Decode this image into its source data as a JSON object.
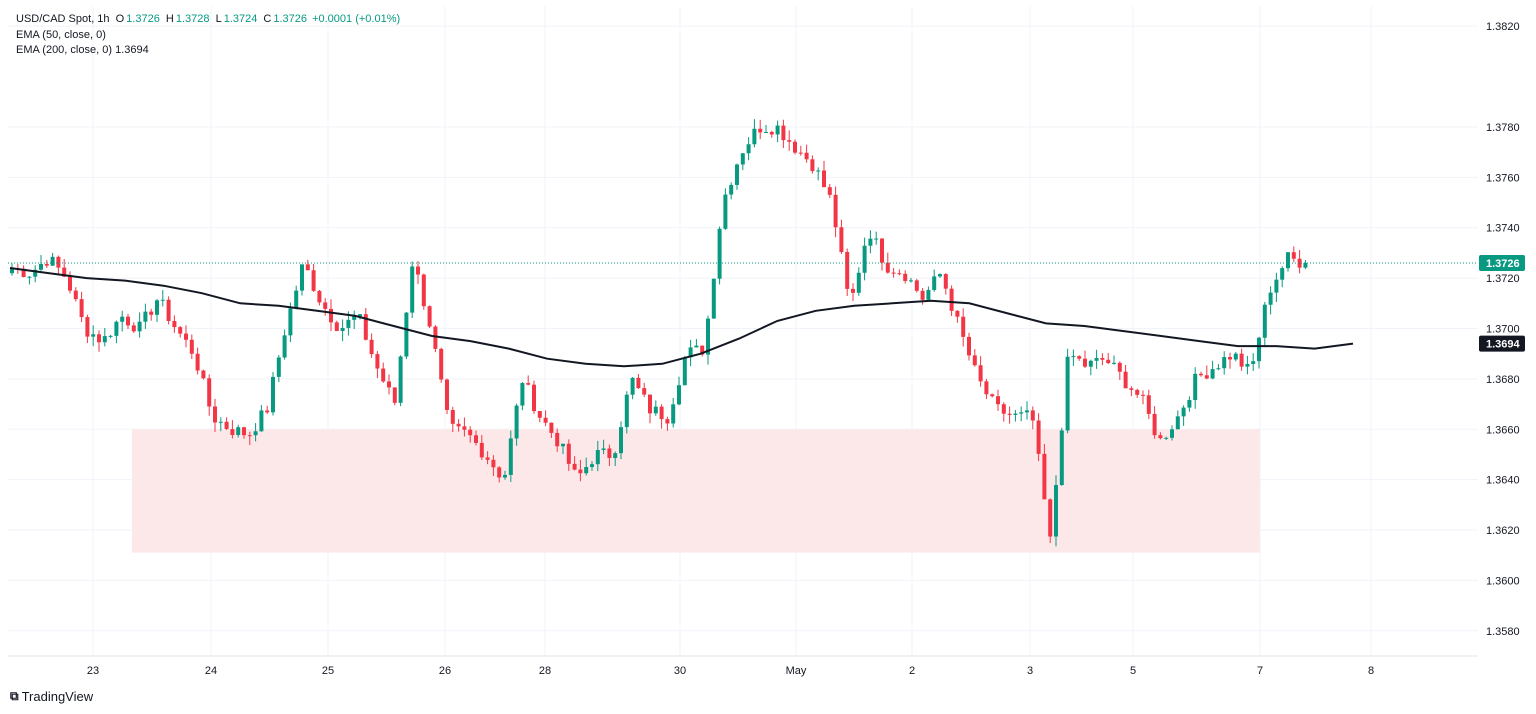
{
  "legend": {
    "symbol": "USD/CAD Spot, 1h",
    "o_label": "O",
    "o": "1.3726",
    "h_label": "H",
    "h": "1.3728",
    "l_label": "L",
    "l": "1.3724",
    "c_label": "C",
    "c": "1.3726",
    "change": "+0.0001 (+0.01%)",
    "ema50": "EMA (50, close, 0)",
    "ema200": "EMA (200, close, 0)",
    "ema200_value": "1.3694"
  },
  "brand": "TradingView",
  "colors": {
    "up": "#089981",
    "down": "#f23645",
    "ema": "#131722",
    "zone": "#fde8e9",
    "grid": "#f0f3fa",
    "badge_ema": "#131722",
    "badge_price": "#089981"
  },
  "chart_data": {
    "type": "candlestick",
    "title": "USD/CAD Spot, 1h",
    "ylim": [
      1.357,
      1.3828
    ],
    "y_ticks": [
      "1.3580",
      "1.3600",
      "1.3620",
      "1.3640",
      "1.3660",
      "1.3680",
      "1.3700",
      "1.3720",
      "1.3740",
      "1.3760",
      "1.3780",
      "1.3820"
    ],
    "x_ticks": [
      "23",
      "24",
      "25",
      "26",
      "28",
      "30",
      "May",
      "2",
      "3",
      "5",
      "7",
      "8"
    ],
    "last_price_label": "1.3726",
    "ema_label": "1.3694",
    "support_zone": {
      "from": 1.3611,
      "to": 1.366,
      "start_label": "23",
      "end_label": "7"
    },
    "anchors_close": [
      1.3724,
      1.3722,
      1.3728,
      1.372,
      1.37,
      1.3695,
      1.3705,
      1.37,
      1.3712,
      1.37,
      1.369,
      1.3665,
      1.366,
      1.3658,
      1.3668,
      1.37,
      1.3726,
      1.371,
      1.37,
      1.3705,
      1.3685,
      1.367,
      1.3728,
      1.37,
      1.366,
      1.3658,
      1.365,
      1.364,
      1.368,
      1.3665,
      1.3655,
      1.364,
      1.365,
      1.365,
      1.368,
      1.3668,
      1.3665,
      1.369,
      1.3692,
      1.375,
      1.377,
      1.378,
      1.378,
      1.3772,
      1.3765,
      1.375,
      1.3708,
      1.374,
      1.3725,
      1.3722,
      1.3712,
      1.3722,
      1.37,
      1.368,
      1.3668,
      1.3665,
      1.3665,
      1.3615,
      1.369,
      1.3685,
      1.3688,
      1.368,
      1.3672,
      1.3655,
      1.3665,
      1.368,
      1.3685,
      1.369,
      1.3682,
      1.3715,
      1.3728,
      1.3726
    ],
    "ema200": [
      1.3724,
      1.3722,
      1.372,
      1.3719,
      1.3717,
      1.3714,
      1.371,
      1.3709,
      1.3707,
      1.3705,
      1.3701,
      1.3697,
      1.3695,
      1.3692,
      1.3688,
      1.3686,
      1.3685,
      1.3686,
      1.369,
      1.3696,
      1.3703,
      1.3707,
      1.3709,
      1.371,
      1.3711,
      1.371,
      1.3706,
      1.3702,
      1.3701,
      1.3699,
      1.3697,
      1.3695,
      1.3693,
      1.3693,
      1.3692,
      1.3694
    ],
    "last_price": 1.3726,
    "ema200_last": 1.3694
  }
}
